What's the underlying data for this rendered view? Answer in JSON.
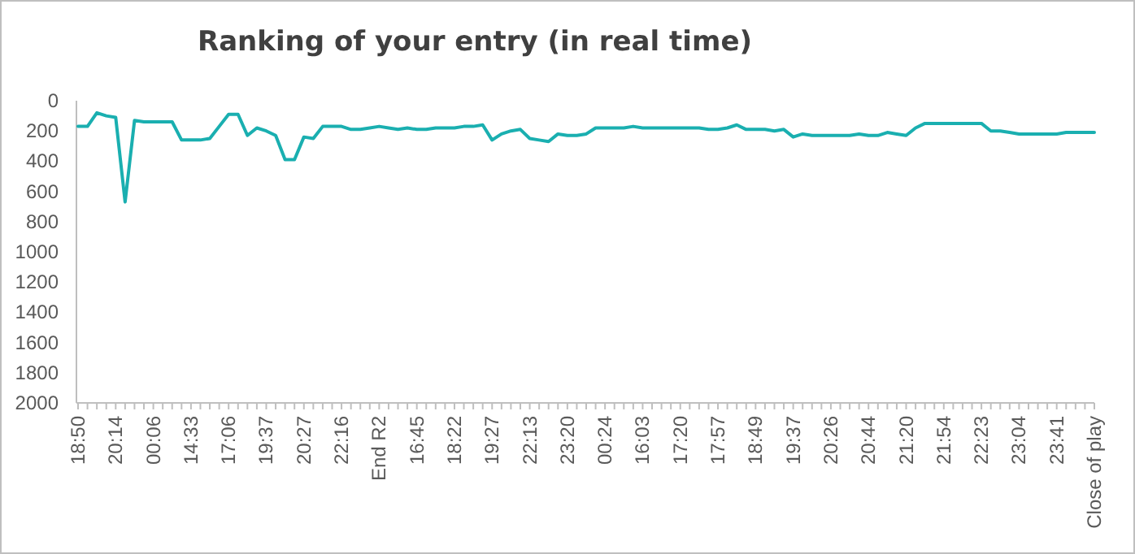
{
  "chart_data": {
    "type": "line",
    "title": "Ranking of your entry (in real time)",
    "categories": [
      "18:50",
      null,
      null,
      null,
      "20:14",
      null,
      null,
      null,
      "00:06",
      null,
      null,
      null,
      "14:33",
      null,
      null,
      null,
      "17:06",
      null,
      null,
      null,
      "19:37",
      null,
      null,
      null,
      "20:27",
      null,
      null,
      null,
      "22:16",
      null,
      null,
      null,
      "End R2",
      null,
      null,
      null,
      "16:45",
      null,
      null,
      null,
      "18:22",
      null,
      null,
      null,
      "19:27",
      null,
      null,
      null,
      "22:13",
      null,
      null,
      null,
      "23:20",
      null,
      null,
      null,
      "00:24",
      null,
      null,
      null,
      "16:03",
      null,
      null,
      null,
      "17:20",
      null,
      null,
      null,
      "17:57",
      null,
      null,
      null,
      "18:49",
      null,
      null,
      null,
      "19:37",
      null,
      null,
      null,
      "20:26",
      null,
      null,
      null,
      "20:44",
      null,
      null,
      null,
      "21:20",
      null,
      null,
      null,
      "21:54",
      null,
      null,
      null,
      "22:23",
      null,
      null,
      null,
      "23:04",
      null,
      null,
      null,
      "23:41",
      null,
      null,
      null,
      "Close of play"
    ],
    "series": [
      {
        "color": "#1aafb0",
        "values": [
          170,
          170,
          80,
          100,
          110,
          670,
          130,
          140,
          140,
          140,
          140,
          260,
          260,
          260,
          250,
          170,
          90,
          90,
          230,
          180,
          200,
          230,
          390,
          390,
          240,
          250,
          170,
          170,
          170,
          190,
          190,
          180,
          170,
          180,
          190,
          180,
          190,
          190,
          180,
          180,
          180,
          170,
          170,
          160,
          260,
          220,
          200,
          190,
          250,
          260,
          270,
          220,
          230,
          230,
          220,
          180,
          180,
          180,
          180,
          170,
          180,
          180,
          180,
          180,
          180,
          180,
          180,
          190,
          190,
          180,
          160,
          190,
          190,
          190,
          200,
          190,
          240,
          220,
          230,
          230,
          230,
          230,
          230,
          220,
          230,
          230,
          210,
          220,
          230,
          180,
          150,
          150,
          150,
          150,
          150,
          150,
          150,
          200,
          200,
          210,
          220,
          220,
          220,
          220,
          220,
          210,
          210,
          210,
          210
        ]
      }
    ],
    "ylim": [
      2000,
      0
    ],
    "yticks": [
      0,
      200,
      400,
      600,
      800,
      1000,
      1200,
      1400,
      1600,
      1800,
      2000
    ],
    "grid": false,
    "legend": false,
    "marker": "none",
    "line_style": "solid"
  }
}
